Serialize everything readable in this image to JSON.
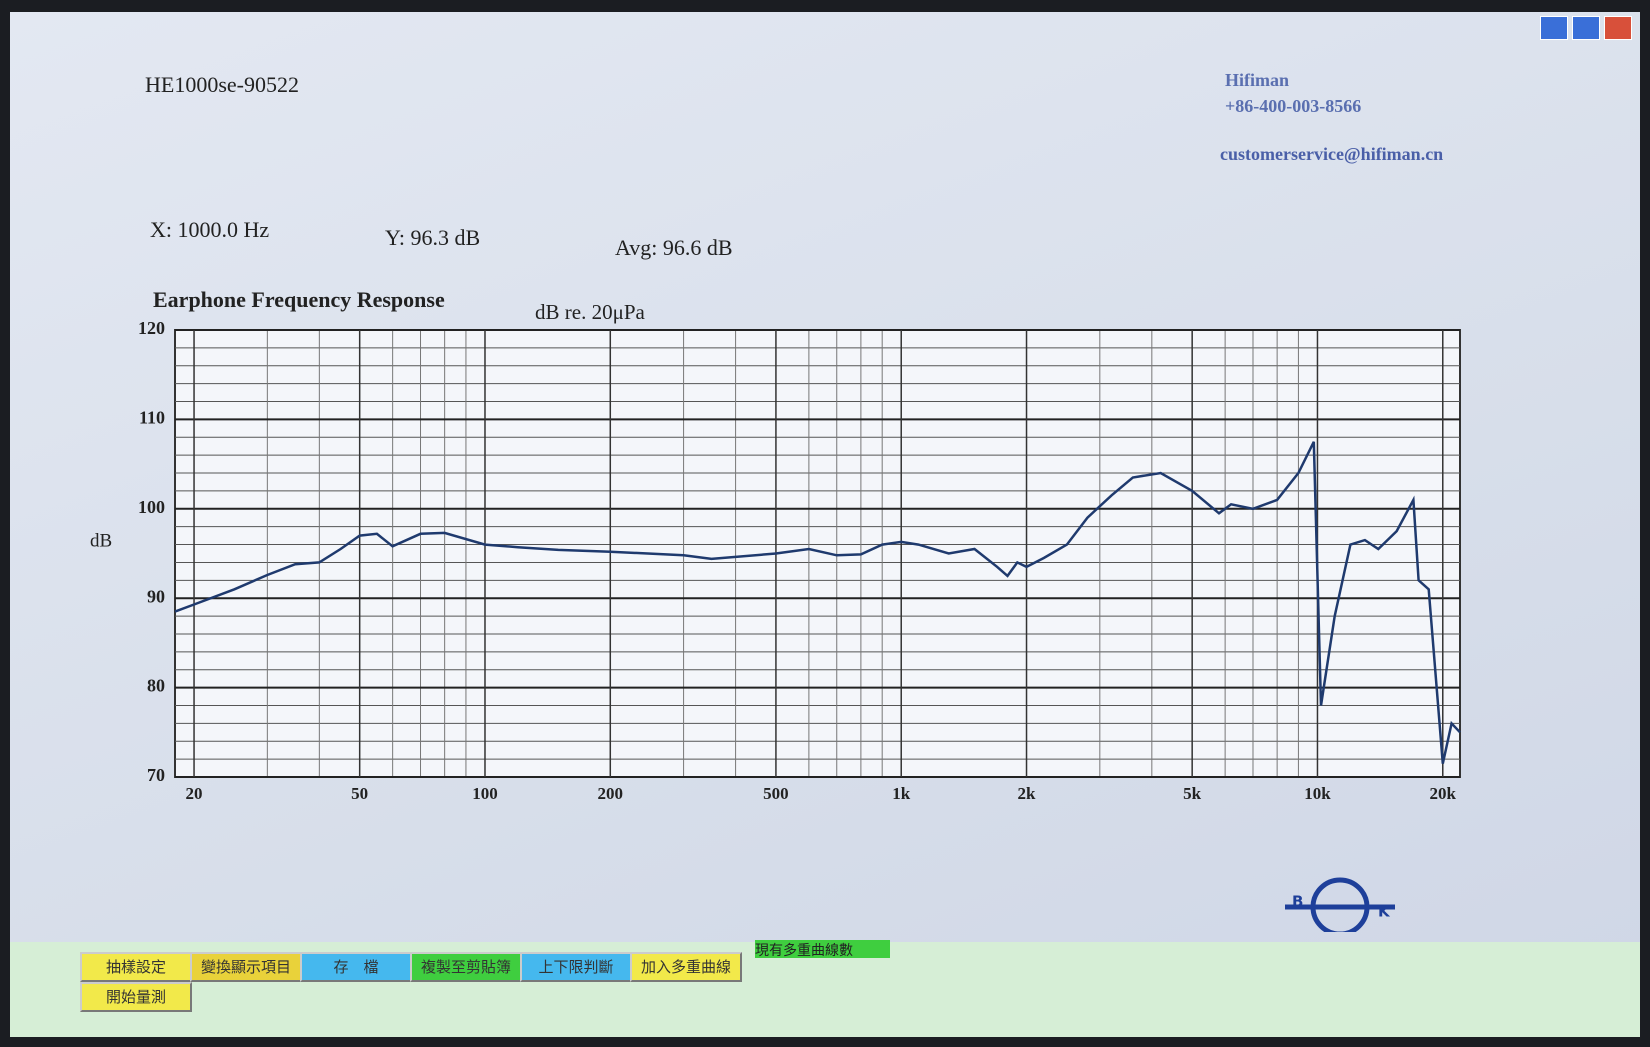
{
  "header": {
    "title": "HE1000se-90522",
    "company": "Hifiman",
    "phone": "+86-400-003-8566",
    "email": "customerservice@hifiman.cn"
  },
  "readout": {
    "x": "X: 1000.0 Hz",
    "y": "Y: 96.3 dB",
    "avg": "Avg: 96.6 dB"
  },
  "chart_data": {
    "type": "line",
    "title": "Earphone Frequency Response",
    "unit_label": "dB re. 20μPa",
    "y_label": "dB",
    "color": "#1f3a6e",
    "log_x": true,
    "grid": true,
    "x": [
      18,
      20,
      25,
      30,
      35,
      40,
      45,
      50,
      55,
      60,
      70,
      80,
      100,
      120,
      150,
      200,
      300,
      350,
      500,
      600,
      700,
      800,
      900,
      1000,
      1100,
      1300,
      1500,
      1700,
      1800,
      1900,
      2000,
      2200,
      2500,
      2800,
      3200,
      3600,
      4200,
      5000,
      5800,
      6200,
      7000,
      8000,
      9000,
      9800,
      10200,
      11000,
      12000,
      13000,
      14000,
      15500,
      17000,
      17500,
      18500,
      20000,
      21000,
      22000
    ],
    "values": [
      88.5,
      89.3,
      91,
      92.6,
      93.8,
      94,
      95.5,
      97,
      97.2,
      95.8,
      97.2,
      97.3,
      96,
      95.7,
      95.4,
      95.2,
      94.8,
      94.4,
      95,
      95.5,
      94.8,
      94.9,
      96,
      96.3,
      96,
      95,
      95.5,
      93.5,
      92.5,
      94,
      93.5,
      94.5,
      96,
      99,
      101.5,
      103.5,
      104,
      102,
      99.5,
      100.5,
      100,
      101,
      104,
      107.5,
      78,
      88,
      96,
      96.5,
      95.5,
      97.5,
      101,
      92,
      91,
      71.5,
      76,
      75
    ],
    "xlim": [
      18,
      22000
    ],
    "ylim": [
      70,
      120
    ],
    "xticks": [
      20,
      50,
      100,
      200,
      500,
      {
        "value": 1000,
        "label": "1k"
      },
      {
        "value": 2000,
        "label": "2k"
      },
      {
        "value": 5000,
        "label": "5k"
      },
      {
        "value": 10000,
        "label": "10k"
      },
      {
        "value": 20000,
        "label": "20k"
      }
    ],
    "xminor": [
      30,
      40,
      60,
      70,
      80,
      90,
      300,
      400,
      600,
      700,
      800,
      900,
      3000,
      4000,
      6000,
      7000,
      8000,
      9000
    ],
    "yticks": [
      70,
      80,
      90,
      100,
      110,
      120
    ],
    "yminor": [
      72,
      74,
      76,
      78,
      82,
      84,
      86,
      88,
      92,
      94,
      96,
      98,
      102,
      104,
      106,
      108,
      112,
      114,
      116,
      118
    ]
  },
  "buttons": [
    "抽樣設定",
    "變換顯示項目",
    "存　檔",
    "複製至剪貼簿",
    "上下限判斷",
    "加入多重曲線",
    "開始量測"
  ],
  "counter_label": "現有多重曲線數",
  "logo": {
    "left": "B",
    "right": "K"
  }
}
